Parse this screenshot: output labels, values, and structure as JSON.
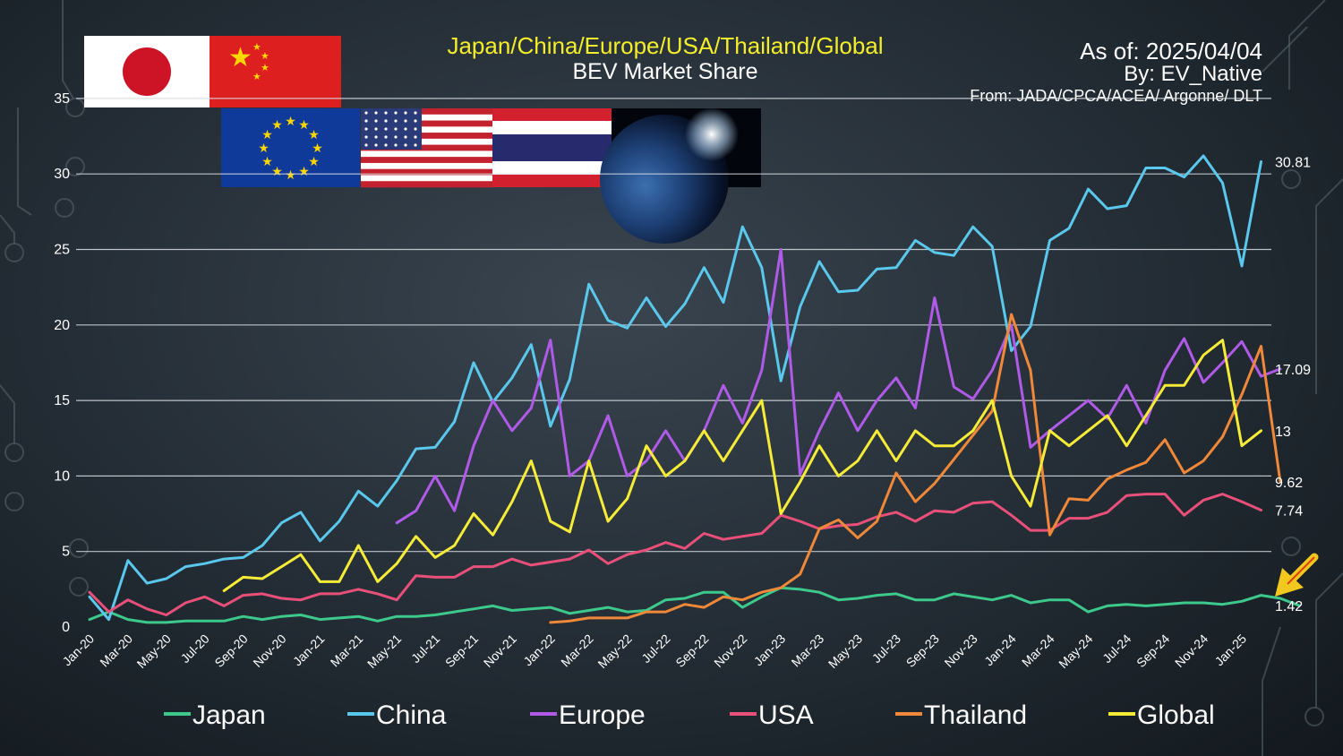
{
  "chart_data": {
    "type": "line",
    "title": "Japan/China/Europe/USA/Thailand/Global",
    "subtitle": "BEV Market Share",
    "as_of": "As of:  2025/04/04",
    "by": "By: EV_Native",
    "source": "From: JADA/CPCA/ACEA/ Argonne/ DLT",
    "ylim": [
      0,
      35
    ],
    "yticks": [
      "0",
      "5",
      "10",
      "15",
      "20",
      "25",
      "30",
      "35"
    ],
    "grid": true,
    "legend_position": "bottom",
    "x_tick_labels": [
      "Jan-20",
      "Mar-20",
      "May-20",
      "Jul-20",
      "Sep-20",
      "Nov-20",
      "Jan-21",
      "Mar-21",
      "May-21",
      "Jul-21",
      "Sep-21",
      "Nov-21",
      "Jan-22",
      "Mar-22",
      "May-22",
      "Jul-22",
      "Sep-22",
      "Nov-22",
      "Jan-23",
      "Mar-23",
      "May-23",
      "Jul-23",
      "Sep-23",
      "Nov-23",
      "Jan-24",
      "Mar-24",
      "May-24",
      "Jul-24",
      "Sep-24",
      "Nov-24",
      "Jan-25"
    ],
    "end_labels": [
      "30.81",
      "17.09",
      "13",
      "9.62",
      "7.74",
      "1.42"
    ],
    "flags": [
      "japan-flag",
      "china-flag",
      "eu-flag",
      "usa-flag",
      "thailand-flag",
      "earth-image"
    ],
    "series": [
      {
        "name": "Japan",
        "color": "#3dc98c",
        "start": 0,
        "values": [
          0.5,
          1.0,
          0.5,
          0.3,
          0.3,
          0.4,
          0.4,
          0.4,
          0.7,
          0.5,
          0.7,
          0.8,
          0.5,
          0.6,
          0.7,
          0.4,
          0.7,
          0.7,
          0.8,
          1.0,
          1.2,
          1.4,
          1.1,
          1.2,
          1.3,
          0.9,
          1.1,
          1.3,
          1.0,
          1.1,
          1.8,
          1.9,
          2.3,
          2.3,
          1.3,
          2.0,
          2.6,
          2.5,
          2.3,
          1.8,
          1.9,
          2.1,
          2.2,
          1.8,
          1.8,
          2.2,
          2.0,
          1.8,
          2.1,
          1.6,
          1.8,
          1.8,
          1.0,
          1.4,
          1.5,
          1.4,
          1.5,
          1.6,
          1.6,
          1.5,
          1.7,
          2.1,
          1.9,
          1.42
        ]
      },
      {
        "name": "China",
        "color": "#5ac8ec",
        "start": 0,
        "values": [
          2.0,
          0.5,
          4.4,
          2.9,
          3.2,
          4.0,
          4.2,
          4.5,
          4.6,
          5.4,
          6.9,
          7.6,
          5.7,
          7.0,
          9.0,
          8.0,
          9.7,
          11.8,
          11.9,
          13.6,
          17.5,
          14.9,
          16.5,
          18.7,
          13.3,
          16.4,
          22.7,
          20.3,
          19.8,
          21.8,
          19.9,
          21.4,
          23.8,
          21.5,
          26.5,
          23.8,
          16.3,
          21.2,
          24.2,
          22.2,
          22.3,
          23.7,
          23.8,
          25.6,
          24.8,
          24.6,
          26.5,
          25.2,
          18.3,
          19.9,
          25.6,
          26.4,
          29.0,
          27.7,
          27.9,
          30.4,
          30.4,
          29.8,
          31.2,
          29.4,
          23.9,
          30.81
        ]
      },
      {
        "name": "Europe",
        "color": "#b05ae8",
        "start": 16,
        "values": [
          6.9,
          7.7,
          10.0,
          7.7,
          12.0,
          15.0,
          13.0,
          14.5,
          19.0,
          10.0,
          11.0,
          14.0,
          10.0,
          11.0,
          13.0,
          11.0,
          13.0,
          16.0,
          13.5,
          17.0,
          25.0,
          10.1,
          13.0,
          15.5,
          13.0,
          15.0,
          16.5,
          14.5,
          21.8,
          15.9,
          15.1,
          17.0,
          20.0,
          11.9,
          13.0,
          14.0,
          15.0,
          13.8,
          16.0,
          13.5,
          17.0,
          19.1,
          16.2,
          17.5,
          18.9,
          16.6,
          17.09
        ]
      },
      {
        "name": "USA",
        "color": "#e8507a",
        "start": 0,
        "values": [
          2.3,
          1.0,
          1.8,
          1.2,
          0.8,
          1.6,
          2.0,
          1.4,
          2.1,
          2.2,
          1.9,
          1.8,
          2.2,
          2.2,
          2.5,
          2.2,
          1.8,
          3.4,
          3.3,
          3.3,
          4.0,
          4.0,
          4.5,
          4.1,
          4.3,
          4.5,
          5.1,
          4.2,
          4.8,
          5.1,
          5.6,
          5.2,
          6.2,
          5.8,
          6.0,
          6.2,
          7.4,
          7.0,
          6.5,
          6.7,
          6.8,
          7.3,
          7.6,
          7.0,
          7.7,
          7.6,
          8.2,
          8.3,
          7.4,
          6.4,
          6.4,
          7.2,
          7.2,
          7.6,
          8.7,
          8.8,
          8.8,
          7.4,
          8.4,
          8.8,
          8.3,
          7.74
        ]
      },
      {
        "name": "Thailand",
        "color": "#f0883a",
        "start": 24,
        "values": [
          0.3,
          0.4,
          0.6,
          0.6,
          0.6,
          1.0,
          1.0,
          1.5,
          1.3,
          2.0,
          1.8,
          2.3,
          2.6,
          3.5,
          6.5,
          7.1,
          5.9,
          7.0,
          10.2,
          8.3,
          9.5,
          11.1,
          12.7,
          14.3,
          20.7,
          17.0,
          6.1,
          8.5,
          8.4,
          9.8,
          10.4,
          10.9,
          12.4,
          10.2,
          11.0,
          12.6,
          15.4,
          18.6,
          9.62
        ]
      },
      {
        "name": "Global",
        "color": "#f6ec38",
        "start": 7,
        "values": [
          2.4,
          3.3,
          3.2,
          4.0,
          4.8,
          3.0,
          3.0,
          5.4,
          3.0,
          4.2,
          6.0,
          4.6,
          5.4,
          7.5,
          6.1,
          8.3,
          11.0,
          7.0,
          6.3,
          11.0,
          7.0,
          8.5,
          12.0,
          10.0,
          11.0,
          13.0,
          11.0,
          13.0,
          15.0,
          7.5,
          9.6,
          12.0,
          10.0,
          11.0,
          13.0,
          11.0,
          13.0,
          12.0,
          12.0,
          13.0,
          15.0,
          10.0,
          8.0,
          13.0,
          12.0,
          13.0,
          14.0,
          12.0,
          14.0,
          16.0,
          16.0,
          18.0,
          19.0,
          12.0,
          13
        ]
      }
    ]
  }
}
